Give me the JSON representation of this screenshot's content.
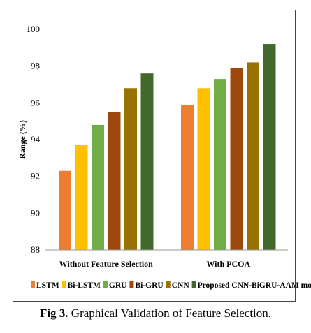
{
  "chart_data": {
    "type": "bar",
    "title": "",
    "xlabel": "",
    "ylabel": "Range (%)",
    "ylim": [
      88,
      100
    ],
    "yticks": [
      88,
      90,
      92,
      94,
      96,
      98,
      100
    ],
    "grid": false,
    "legend_position": "bottom",
    "categories": [
      "Without Feature Selection",
      "With PCOA"
    ],
    "series": [
      {
        "name": "LSTM",
        "color": "#ED7D31",
        "values": [
          92.3,
          95.9
        ]
      },
      {
        "name": "Bi-LSTM",
        "color": "#FFC000",
        "values": [
          93.7,
          96.8
        ]
      },
      {
        "name": "GRU",
        "color": "#70AD47",
        "values": [
          94.8,
          97.3
        ]
      },
      {
        "name": "Bi-GRU",
        "color": "#9E480E",
        "values": [
          95.5,
          97.9
        ]
      },
      {
        "name": "CNN",
        "color": "#997300",
        "values": [
          96.8,
          98.2
        ]
      },
      {
        "name": "Proposed CNN-BiGRU-AAM model",
        "color": "#43682B",
        "values": [
          97.6,
          99.2
        ]
      }
    ]
  },
  "caption": {
    "label": "Fig 3.",
    "text": " Graphical Validation of Feature Selection."
  }
}
